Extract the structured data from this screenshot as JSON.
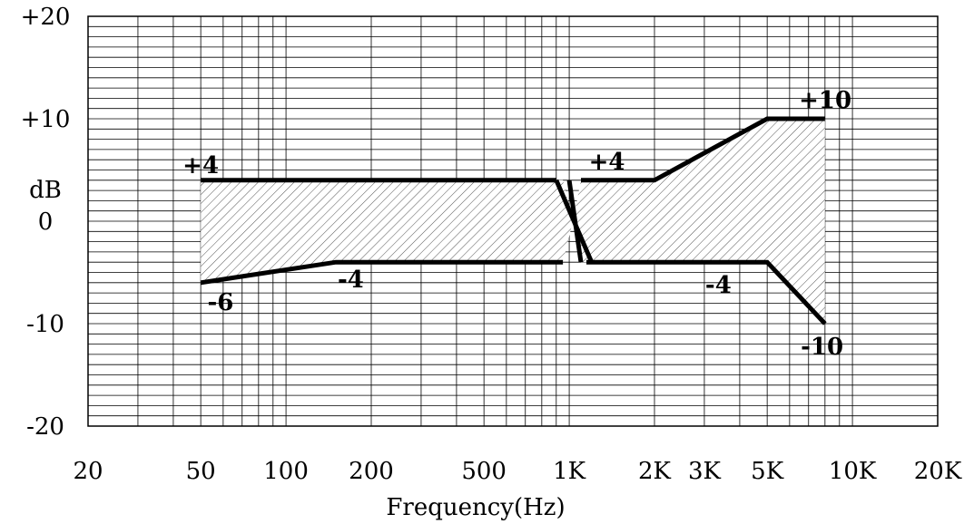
{
  "chart_data": {
    "type": "line",
    "title": "",
    "xlabel": "Frequency(Hz)",
    "ylabel": "dB",
    "x_scale": "log",
    "xlim": [
      20,
      20000
    ],
    "ylim": [
      -20,
      20
    ],
    "grid": true,
    "x_ticks": [
      {
        "value": 20,
        "label": "20"
      },
      {
        "value": 50,
        "label": "50"
      },
      {
        "value": 100,
        "label": "100"
      },
      {
        "value": 200,
        "label": "200"
      },
      {
        "value": 500,
        "label": "500"
      },
      {
        "value": 1000,
        "label": "1K"
      },
      {
        "value": 2000,
        "label": "2K"
      },
      {
        "value": 3000,
        "label": "3K"
      },
      {
        "value": 5000,
        "label": "5K"
      },
      {
        "value": 10000,
        "label": "10K"
      },
      {
        "value": 20000,
        "label": "20K"
      }
    ],
    "y_ticks": [
      {
        "value": 20,
        "label": "+20"
      },
      {
        "value": 10,
        "label": "+10"
      },
      {
        "value": 0,
        "label": "0"
      },
      {
        "value": -10,
        "label": "-10"
      },
      {
        "value": -20,
        "label": "-20"
      }
    ],
    "series": [
      {
        "x": [
          50,
          200,
          900
        ],
        "y": [
          4,
          4,
          4
        ]
      },
      {
        "x": [
          900,
          1200
        ],
        "y": [
          4,
          -4
        ]
      },
      {
        "x": [
          1100,
          2000,
          5000,
          8000
        ],
        "y": [
          4,
          4,
          10,
          10
        ]
      },
      {
        "x": [
          1000,
          1100
        ],
        "y": [
          4,
          -4
        ]
      },
      {
        "x": [
          50,
          150,
          950
        ],
        "y": [
          -6,
          -4,
          -4
        ]
      },
      {
        "x": [
          1150,
          5000,
          8000
        ],
        "y": [
          -4,
          -4,
          -10
        ]
      }
    ],
    "shaded_region": {
      "upper": {
        "x": [
          50,
          950,
          1030,
          1100,
          2000,
          5000,
          8000
        ],
        "y": [
          4,
          4,
          0,
          4,
          4,
          10,
          10
        ]
      },
      "lower": {
        "x": [
          50,
          150,
          950,
          1030,
          1100,
          5000,
          8000
        ],
        "y": [
          -6,
          -4,
          -4,
          0,
          -4,
          -4,
          -10
        ]
      }
    },
    "annotations": [
      {
        "text": "+4",
        "x": 50,
        "y": 4
      },
      {
        "text": "-6",
        "x": 52,
        "y": -6
      },
      {
        "text": "-4",
        "x": 150,
        "y": -4
      },
      {
        "text": "+4",
        "x": 1300,
        "y": 4
      },
      {
        "text": "+10",
        "x": 7500,
        "y": 10
      },
      {
        "text": "-4",
        "x": 4000,
        "y": -4
      },
      {
        "text": "-10",
        "x": 7500,
        "y": -10
      }
    ]
  }
}
